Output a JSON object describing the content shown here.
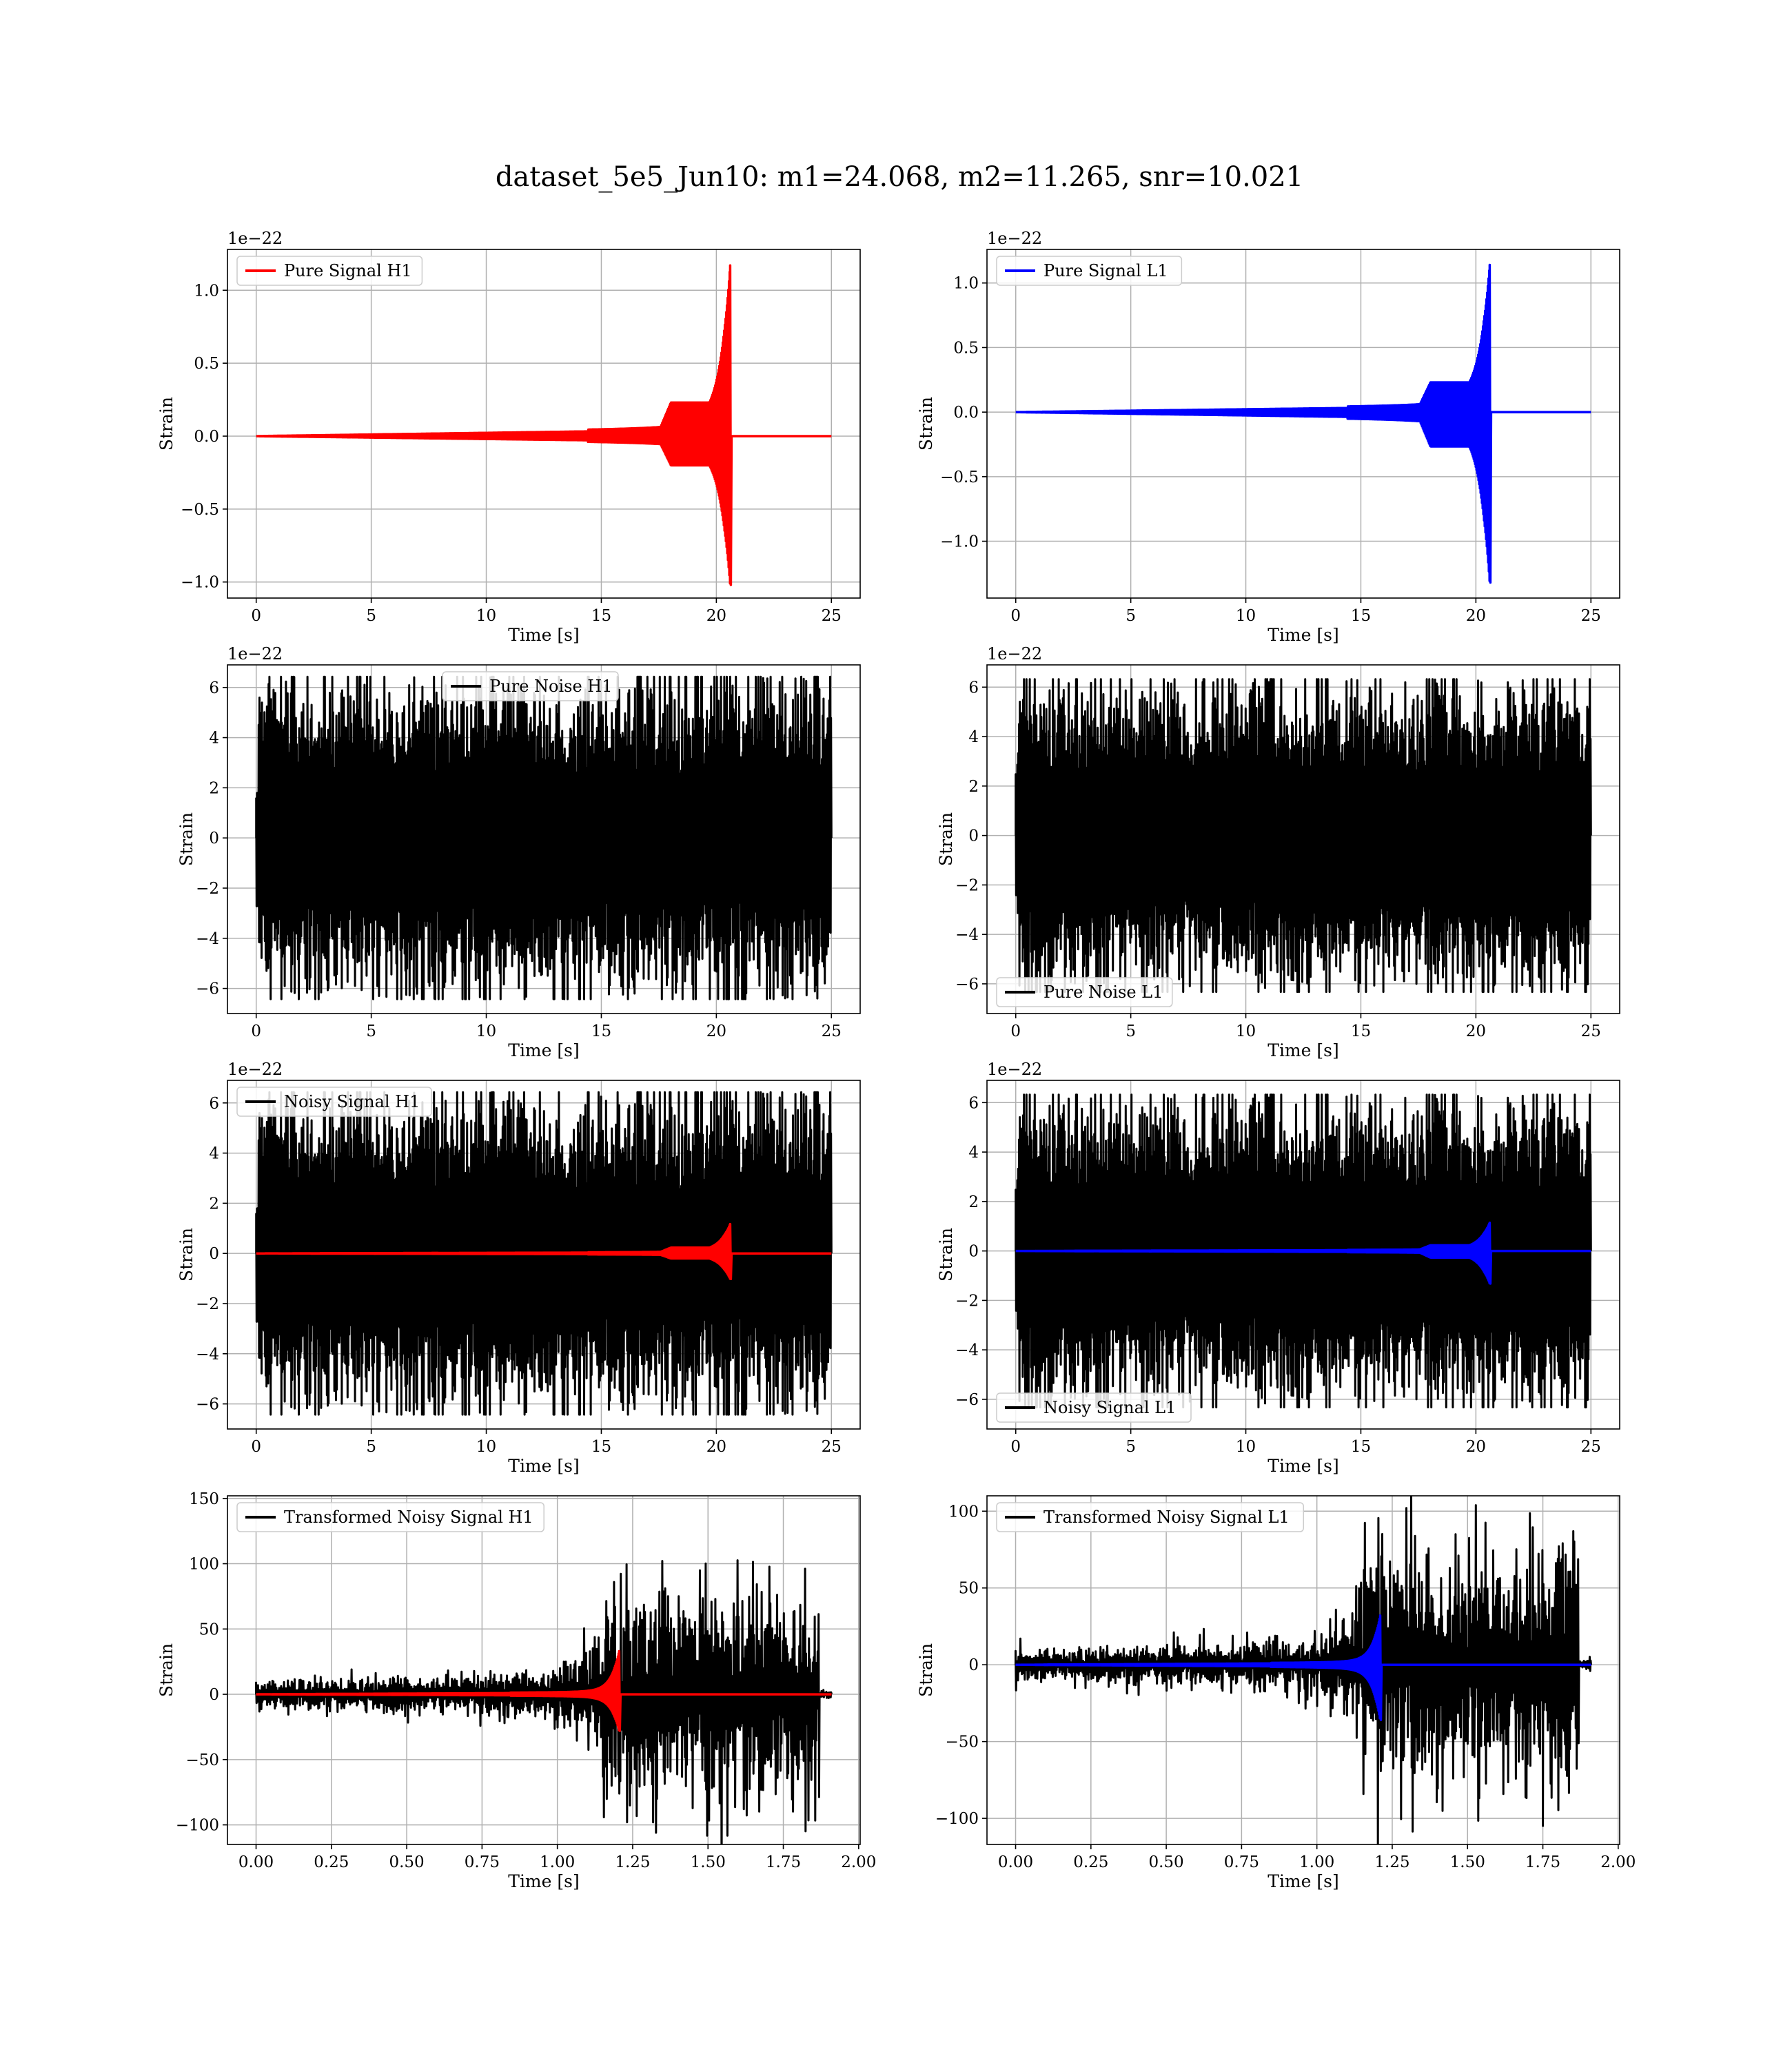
{
  "figure": {
    "title": "dataset_5e5_Jun10: m1=24.068, m2=11.265, snr=10.021"
  },
  "colors": {
    "h1_signal": "#ff0000",
    "l1_signal": "#0000ff",
    "noise": "#000000",
    "grid": "#b0b0b0"
  },
  "chart_data": [
    {
      "id": "pure-signal-h1",
      "type": "line",
      "grid": true,
      "xlabel": "Time [s]",
      "ylabel": "Strain",
      "offset_label": "1e−22",
      "xlim": [
        -1.25,
        26.25
      ],
      "ylim": [
        -1.11,
        1.28
      ],
      "xticks": [
        0,
        5,
        10,
        15,
        20,
        25
      ],
      "xtick_labels": [
        "0",
        "5",
        "10",
        "15",
        "20",
        "25"
      ],
      "yticks": [
        -1.0,
        -0.5,
        0.0,
        0.5,
        1.0
      ],
      "ytick_labels": [
        "−1.0",
        "−0.5",
        "0.0",
        "0.5",
        "1.0"
      ],
      "legend_position": "upper-left",
      "series": [
        {
          "name": "Pure Signal H1",
          "kind": "chirp",
          "color": "#ff0000",
          "start": 0,
          "end": 25,
          "merger": 20.6,
          "envelope_peak": 1.17,
          "envelope_trough": -1.02,
          "plateau": 0.23
        }
      ]
    },
    {
      "id": "pure-signal-l1",
      "type": "line",
      "grid": true,
      "xlabel": "Time [s]",
      "ylabel": "Strain",
      "offset_label": "1e−22",
      "xlim": [
        -1.25,
        26.25
      ],
      "ylim": [
        -1.44,
        1.26
      ],
      "xticks": [
        0,
        5,
        10,
        15,
        20,
        25
      ],
      "xtick_labels": [
        "0",
        "5",
        "10",
        "15",
        "20",
        "25"
      ],
      "yticks": [
        -1.0,
        -0.5,
        0.0,
        0.5,
        1.0
      ],
      "ytick_labels": [
        "−1.0",
        "−0.5",
        "0.0",
        "0.5",
        "1.0"
      ],
      "legend_position": "upper-left",
      "series": [
        {
          "name": "Pure Signal L1",
          "kind": "chirp",
          "color": "#0000ff",
          "start": 0,
          "end": 25,
          "merger": 20.6,
          "envelope_peak": 1.14,
          "envelope_trough": -1.32,
          "plateau": 0.23
        }
      ]
    },
    {
      "id": "pure-noise-h1",
      "type": "line",
      "grid": true,
      "xlabel": "Time [s]",
      "ylabel": "Strain",
      "offset_label": "1e−22",
      "xlim": [
        -1.25,
        26.25
      ],
      "ylim": [
        -7.0,
        6.9
      ],
      "xticks": [
        0,
        5,
        10,
        15,
        20,
        25
      ],
      "xtick_labels": [
        "0",
        "5",
        "10",
        "15",
        "20",
        "25"
      ],
      "yticks": [
        -6,
        -4,
        -2,
        0,
        2,
        4,
        6
      ],
      "ytick_labels": [
        "−6",
        "−4",
        "−2",
        "0",
        "2",
        "4",
        "6"
      ],
      "legend_position": "upper-center",
      "series": [
        {
          "name": "Pure Noise H1",
          "kind": "noise",
          "color": "#000000",
          "start": 0,
          "end": 25,
          "amplitude": 6.3,
          "seed": 11
        }
      ]
    },
    {
      "id": "pure-noise-l1",
      "type": "line",
      "grid": true,
      "xlabel": "Time [s]",
      "ylabel": "Strain",
      "offset_label": "1e−22",
      "xlim": [
        -1.25,
        26.25
      ],
      "ylim": [
        -7.2,
        6.9
      ],
      "xticks": [
        0,
        5,
        10,
        15,
        20,
        25
      ],
      "xtick_labels": [
        "0",
        "5",
        "10",
        "15",
        "20",
        "25"
      ],
      "yticks": [
        -6,
        -4,
        -2,
        0,
        2,
        4,
        6
      ],
      "ytick_labels": [
        "−6",
        "−4",
        "−2",
        "0",
        "2",
        "4",
        "6"
      ],
      "legend_position": "lower-left",
      "series": [
        {
          "name": "Pure Noise L1",
          "kind": "noise",
          "color": "#000000",
          "start": 0,
          "end": 25,
          "amplitude": 6.2,
          "seed": 23
        }
      ]
    },
    {
      "id": "noisy-signal-h1",
      "type": "line",
      "grid": true,
      "xlabel": "Time [s]",
      "ylabel": "Strain",
      "offset_label": "1e−22",
      "xlim": [
        -1.25,
        26.25
      ],
      "ylim": [
        -7.0,
        6.9
      ],
      "xticks": [
        0,
        5,
        10,
        15,
        20,
        25
      ],
      "xtick_labels": [
        "0",
        "5",
        "10",
        "15",
        "20",
        "25"
      ],
      "yticks": [
        -6,
        -4,
        -2,
        0,
        2,
        4,
        6
      ],
      "ytick_labels": [
        "−6",
        "−4",
        "−2",
        "0",
        "2",
        "4",
        "6"
      ],
      "legend_position": "upper-left",
      "series": [
        {
          "name": "Noisy Signal H1",
          "kind": "noise",
          "color": "#000000",
          "start": 0,
          "end": 25,
          "amplitude": 6.3,
          "seed": 11
        },
        {
          "name": "",
          "kind": "chirp",
          "color": "#ff0000",
          "start": 0,
          "end": 25,
          "merger": 20.6,
          "envelope_peak": 1.17,
          "envelope_trough": -1.02,
          "plateau": 0.23
        }
      ]
    },
    {
      "id": "noisy-signal-l1",
      "type": "line",
      "grid": true,
      "xlabel": "Time [s]",
      "ylabel": "Strain",
      "offset_label": "1e−22",
      "xlim": [
        -1.25,
        26.25
      ],
      "ylim": [
        -7.2,
        6.9
      ],
      "xticks": [
        0,
        5,
        10,
        15,
        20,
        25
      ],
      "xtick_labels": [
        "0",
        "5",
        "10",
        "15",
        "20",
        "25"
      ],
      "yticks": [
        -6,
        -4,
        -2,
        0,
        2,
        4,
        6
      ],
      "ytick_labels": [
        "−6",
        "−4",
        "−2",
        "0",
        "2",
        "4",
        "6"
      ],
      "legend_position": "lower-left",
      "series": [
        {
          "name": "Noisy Signal L1",
          "kind": "noise",
          "color": "#000000",
          "start": 0,
          "end": 25,
          "amplitude": 6.2,
          "seed": 23
        },
        {
          "name": "",
          "kind": "chirp",
          "color": "#0000ff",
          "start": 0,
          "end": 25,
          "merger": 20.6,
          "envelope_peak": 1.14,
          "envelope_trough": -1.32,
          "plateau": 0.23
        }
      ]
    },
    {
      "id": "transformed-noisy-signal-h1",
      "type": "line",
      "grid": true,
      "xlabel": "Time [s]",
      "ylabel": "Strain",
      "offset_label": "",
      "xlim": [
        -0.095,
        2.005
      ],
      "ylim": [
        -115,
        152
      ],
      "xticks": [
        0.0,
        0.25,
        0.5,
        0.75,
        1.0,
        1.25,
        1.5,
        1.75,
        2.0
      ],
      "xtick_labels": [
        "0.00",
        "0.25",
        "0.50",
        "0.75",
        "1.00",
        "1.25",
        "1.50",
        "1.75",
        "2.00"
      ],
      "yticks": [
        -100,
        -50,
        0,
        50,
        100,
        150
      ],
      "ytick_labels": [
        "−100",
        "−50",
        "0",
        "50",
        "100",
        "150"
      ],
      "legend_position": "upper-left",
      "series": [
        {
          "name": "Transformed Noisy Signal H1",
          "kind": "whitened",
          "color": "#000000",
          "start": 0,
          "end": 1.91,
          "pre": 10,
          "post": 75,
          "transition": 1.15,
          "cutoff": 1.87,
          "seed": 31
        },
        {
          "name": "",
          "kind": "chirp",
          "color": "#ff0000",
          "start": 0,
          "end": 1.91,
          "merger": 1.205,
          "envelope_peak": 33,
          "envelope_trough": -28,
          "plateau": 0
        }
      ]
    },
    {
      "id": "transformed-noisy-signal-l1",
      "type": "line",
      "grid": true,
      "xlabel": "Time [s]",
      "ylabel": "Strain",
      "offset_label": "",
      "xlim": [
        -0.095,
        2.005
      ],
      "ylim": [
        -117,
        110
      ],
      "xticks": [
        0.0,
        0.25,
        0.5,
        0.75,
        1.0,
        1.25,
        1.5,
        1.75,
        2.0
      ],
      "xtick_labels": [
        "0.00",
        "0.25",
        "0.50",
        "0.75",
        "1.00",
        "1.25",
        "1.50",
        "1.75",
        "2.00"
      ],
      "yticks": [
        -100,
        -50,
        0,
        50,
        100
      ],
      "ytick_labels": [
        "−100",
        "−50",
        "0",
        "50",
        "100"
      ],
      "legend_position": "upper-left",
      "series": [
        {
          "name": "Transformed Noisy Signal L1",
          "kind": "whitened",
          "color": "#000000",
          "start": 0,
          "end": 1.91,
          "pre": 9,
          "post": 70,
          "transition": 1.13,
          "cutoff": 1.87,
          "seed": 47
        },
        {
          "name": "",
          "kind": "chirp",
          "color": "#0000ff",
          "start": 0,
          "end": 1.91,
          "merger": 1.21,
          "envelope_peak": 32,
          "envelope_trough": -36,
          "plateau": 0
        }
      ]
    }
  ]
}
